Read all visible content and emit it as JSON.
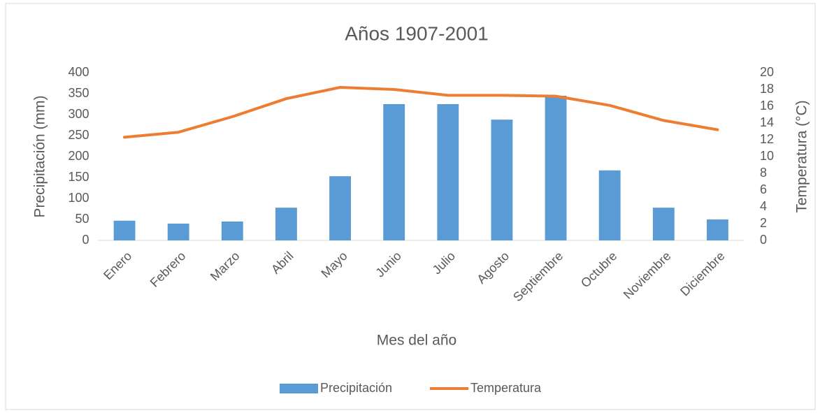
{
  "chart_data": {
    "type": "bar_line",
    "title": "Años  1907-2001",
    "x_label": "Mes del año",
    "y_label": "Precipitación (mm)",
    "y2_label": "Temperatura (°C)",
    "categories": [
      "Enero",
      "Febrero",
      "Marzo",
      "Abril",
      "Mayo",
      "Junio",
      "Julio",
      "Agosto",
      "Septiembre",
      "Octubre",
      "Noviembre",
      "Diciembre"
    ],
    "series": [
      {
        "name": "Precipitación",
        "type": "bar",
        "color": "#5b9bd5",
        "values": [
          47,
          40,
          45,
          78,
          153,
          325,
          325,
          288,
          345,
          167,
          78,
          50
        ]
      },
      {
        "name": "Temperatura",
        "type": "line",
        "axis": "y2",
        "color": "#ed7d31",
        "values": [
          12.3,
          12.9,
          14.75,
          16.9,
          18.25,
          18.0,
          17.3,
          17.3,
          17.2,
          16.1,
          14.3,
          13.2
        ]
      }
    ],
    "ylim": [
      0,
      400
    ],
    "yticks": [
      0,
      50,
      100,
      150,
      200,
      250,
      300,
      350,
      400
    ],
    "y2lim": [
      0,
      20
    ],
    "y2ticks": [
      0,
      2,
      4,
      6,
      8,
      10,
      12,
      14,
      16,
      18,
      20
    ],
    "grid": false,
    "legend": "bottom"
  }
}
